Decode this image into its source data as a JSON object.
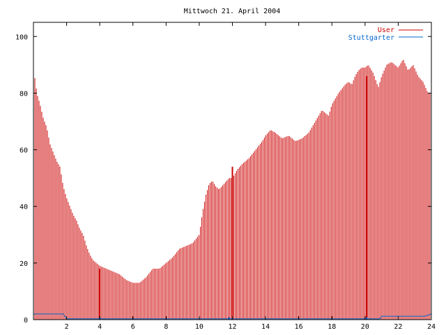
{
  "chart_data": {
    "type": "bar",
    "title": "Mittwoch 21. April 2004",
    "xlabel": "",
    "ylabel": "",
    "xlim": [
      0,
      24
    ],
    "ylim": [
      0,
      105
    ],
    "x_ticks": [
      2,
      4,
      6,
      8,
      10,
      12,
      14,
      16,
      18,
      20,
      22,
      24
    ],
    "y_ticks": [
      0,
      20,
      40,
      60,
      80,
      100
    ],
    "grid": false,
    "legend_position": "top-right",
    "series": [
      {
        "name": "User",
        "color": "#cc0000",
        "anchors_x": [
          0.0,
          0.1,
          0.2,
          0.4,
          0.6,
          0.8,
          1.0,
          1.2,
          1.4,
          1.6,
          1.8,
          2.0,
          2.2,
          2.4,
          2.6,
          2.8,
          3.0,
          3.2,
          3.4,
          3.6,
          3.8,
          4.0,
          4.4,
          4.8,
          5.2,
          5.6,
          6.0,
          6.4,
          6.8,
          7.2,
          7.6,
          8.0,
          8.4,
          8.8,
          9.2,
          9.6,
          10.0,
          10.2,
          10.4,
          10.6,
          10.8,
          11.0,
          11.2,
          11.5,
          11.8,
          12.0,
          12.3,
          12.6,
          13.0,
          13.4,
          13.8,
          14.0,
          14.3,
          14.6,
          15.0,
          15.4,
          15.8,
          16.2,
          16.6,
          17.0,
          17.4,
          17.8,
          18.0,
          18.4,
          18.8,
          19.0,
          19.2,
          19.4,
          19.6,
          19.8,
          20.0,
          20.2,
          20.5,
          20.8,
          21.0,
          21.3,
          21.6,
          22.0,
          22.3,
          22.6,
          22.9,
          23.2,
          23.5,
          23.8,
          24.0
        ],
        "anchors_y": [
          87,
          85,
          80,
          76,
          71,
          68,
          62,
          59,
          56,
          54,
          47,
          43,
          40,
          37,
          35,
          32,
          30,
          26,
          23,
          21,
          20,
          19,
          18,
          17,
          16,
          14,
          13,
          13,
          15,
          18,
          18,
          20,
          22,
          25,
          26,
          27,
          30,
          38,
          44,
          48,
          49,
          47,
          46,
          48,
          50,
          50,
          53,
          55,
          57,
          60,
          63,
          65,
          67,
          66,
          64,
          65,
          63,
          64,
          66,
          70,
          74,
          72,
          76,
          80,
          83,
          84,
          83,
          86,
          88,
          89,
          89,
          90,
          87,
          82,
          86,
          90,
          91,
          89,
          92,
          88,
          90,
          86,
          84,
          80,
          80
        ],
        "spikes_x": [
          4.0,
          12.0,
          20.1
        ],
        "spikes_y": [
          18,
          54,
          86
        ]
      },
      {
        "name": "Stuttgarter",
        "color": "#0066cc",
        "anchors_x": [
          0.0,
          1.8,
          2.0,
          20.9,
          21.0,
          23.6,
          24.0
        ],
        "anchors_y": [
          2,
          2,
          0.3,
          0.3,
          1.2,
          1.2,
          2
        ],
        "markers_x": [
          4.0,
          11.8,
          20.1
        ],
        "markers_y": [
          0.6,
          0.6,
          0.6
        ]
      }
    ]
  }
}
